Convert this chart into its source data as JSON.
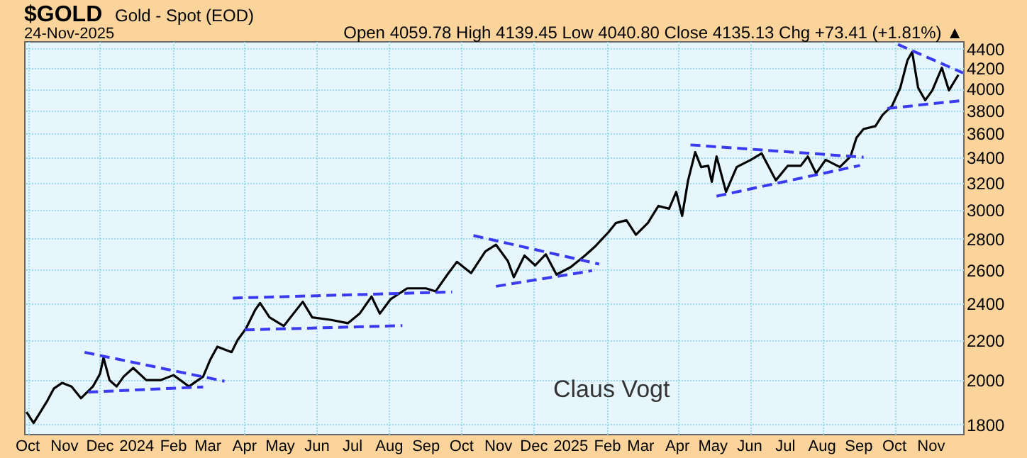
{
  "chart_data": {
    "type": "line",
    "title": "$GOLD",
    "subtitle": "Gold - Spot (EOD)",
    "annotations": [
      "24-Nov-2025",
      "Open 4059.78  High 4139.45  Low 4040.80  Close 4135.13  Chg +73.41 (+1.81%) ▲",
      "Claus Vogt"
    ],
    "log": true,
    "grid": true,
    "xlim": [
      "2023-09-28",
      "2025-11-28"
    ],
    "xticks": [
      {
        "value": "2023-10-01",
        "label": "Oct"
      },
      {
        "value": "2023-11-01",
        "label": "Nov"
      },
      {
        "value": "2023-12-01",
        "label": "Dec"
      },
      {
        "value": "2024-01-01",
        "label": "2024"
      },
      {
        "value": "2024-02-01",
        "label": "Feb"
      },
      {
        "value": "2024-03-01",
        "label": "Mar"
      },
      {
        "value": "2024-04-01",
        "label": "Apr"
      },
      {
        "value": "2024-05-01",
        "label": "May"
      },
      {
        "value": "2024-06-01",
        "label": "Jun"
      },
      {
        "value": "2024-07-01",
        "label": "Jul"
      },
      {
        "value": "2024-08-01",
        "label": "Aug"
      },
      {
        "value": "2024-09-01",
        "label": "Sep"
      },
      {
        "value": "2024-10-01",
        "label": "Oct"
      },
      {
        "value": "2024-11-01",
        "label": "Nov"
      },
      {
        "value": "2024-12-01",
        "label": "Dec"
      },
      {
        "value": "2025-01-01",
        "label": "2025"
      },
      {
        "value": "2025-02-01",
        "label": "Feb"
      },
      {
        "value": "2025-03-01",
        "label": "Mar"
      },
      {
        "value": "2025-04-01",
        "label": "Apr"
      },
      {
        "value": "2025-05-01",
        "label": "May"
      },
      {
        "value": "2025-06-01",
        "label": "Jun"
      },
      {
        "value": "2025-07-01",
        "label": "Jul"
      },
      {
        "value": "2025-08-01",
        "label": "Aug"
      },
      {
        "value": "2025-09-01",
        "label": "Sep"
      },
      {
        "value": "2025-10-01",
        "label": "Oct"
      },
      {
        "value": "2025-11-01",
        "label": "Nov"
      }
    ],
    "ylim": [
      1760,
      4480
    ],
    "yticks": [
      1800,
      2000,
      2200,
      2400,
      2600,
      2800,
      3000,
      3200,
      3400,
      3600,
      3800,
      4000,
      4200,
      4400
    ],
    "series": [
      {
        "color": "#000000",
        "line_style": "solid",
        "x": [
          "2023-09-30",
          "2023-10-06",
          "2023-10-17",
          "2023-10-23",
          "2023-10-30",
          "2023-11-07",
          "2023-11-15",
          "2023-11-25",
          "2023-12-01",
          "2023-12-04",
          "2023-12-09",
          "2023-12-15",
          "2023-12-21",
          "2023-12-29",
          "2024-01-09",
          "2024-01-21",
          "2024-02-01",
          "2024-02-14",
          "2024-02-26",
          "2024-03-03",
          "2024-03-09",
          "2024-03-21",
          "2024-03-26",
          "2024-04-02",
          "2024-04-10",
          "2024-04-14",
          "2024-04-22",
          "2024-05-04",
          "2024-05-20",
          "2024-05-28",
          "2024-06-13",
          "2024-06-27",
          "2024-07-07",
          "2024-07-17",
          "2024-07-24",
          "2024-08-02",
          "2024-08-16",
          "2024-09-01",
          "2024-09-09",
          "2024-09-19",
          "2024-09-27",
          "2024-10-09",
          "2024-10-21",
          "2024-10-30",
          "2024-11-09",
          "2024-11-14",
          "2024-11-23",
          "2024-12-02",
          "2024-12-11",
          "2024-12-20",
          "2025-01-01",
          "2025-01-13",
          "2025-01-22",
          "2025-02-02",
          "2025-02-08",
          "2025-02-17",
          "2025-02-25",
          "2025-03-07",
          "2025-03-16",
          "2025-03-25",
          "2025-03-31",
          "2025-04-05",
          "2025-04-10",
          "2025-04-16",
          "2025-04-21",
          "2025-04-27",
          "2025-04-30",
          "2025-05-04",
          "2025-05-12",
          "2025-05-21",
          "2025-06-02",
          "2025-06-11",
          "2025-06-23",
          "2025-07-03",
          "2025-07-14",
          "2025-07-20",
          "2025-07-27",
          "2025-08-04",
          "2025-08-16",
          "2025-08-25",
          "2025-08-30",
          "2025-09-05",
          "2025-09-15",
          "2025-09-21",
          "2025-09-29",
          "2025-10-06",
          "2025-10-12",
          "2025-10-16",
          "2025-10-21",
          "2025-10-27",
          "2025-11-02",
          "2025-11-10",
          "2025-11-16",
          "2025-11-24"
        ],
        "values": [
          1854,
          1806,
          1899,
          1960,
          1987,
          1970,
          1916,
          1970,
          2030,
          2110,
          2000,
          1970,
          2017,
          2059,
          2000,
          2000,
          2024,
          1970,
          2017,
          2100,
          2166,
          2138,
          2200,
          2260,
          2365,
          2403,
          2322,
          2275,
          2410,
          2322,
          2308,
          2290,
          2343,
          2440,
          2343,
          2424,
          2488,
          2488,
          2470,
          2571,
          2650,
          2580,
          2717,
          2760,
          2655,
          2555,
          2690,
          2628,
          2698,
          2571,
          2617,
          2690,
          2752,
          2845,
          2906,
          2926,
          2826,
          2906,
          3027,
          3007,
          3130,
          2956,
          3217,
          3440,
          3320,
          3330,
          3206,
          3405,
          3130,
          3320,
          3378,
          3430,
          3217,
          3330,
          3330,
          3405,
          3270,
          3378,
          3320,
          3405,
          3560,
          3635,
          3660,
          3758,
          3840,
          4010,
          4280,
          4366,
          4010,
          3892,
          3985,
          4205,
          3985,
          4135
        ]
      },
      {
        "color": "#3a3af0",
        "line_style": "dashed",
        "x": [
          "2023-11-18",
          "2024-03-15"
        ],
        "values": [
          2137,
          1995
        ]
      },
      {
        "color": "#3a3af0",
        "line_style": "dashed",
        "x": [
          "2023-11-21",
          "2024-02-26"
        ],
        "values": [
          1944,
          1968
        ]
      },
      {
        "color": "#3a3af0",
        "line_style": "dashed",
        "x": [
          "2024-03-22",
          "2024-09-23"
        ],
        "values": [
          2431,
          2467
        ]
      },
      {
        "color": "#3a3af0",
        "line_style": "dashed",
        "x": [
          "2024-04-01",
          "2024-08-12"
        ],
        "values": [
          2254,
          2277
        ]
      },
      {
        "color": "#3a3af0",
        "line_style": "dashed",
        "x": [
          "2024-10-11",
          "2025-01-25"
        ],
        "values": [
          2821,
          2636
        ]
      },
      {
        "color": "#3a3af0",
        "line_style": "dashed",
        "x": [
          "2024-10-30",
          "2025-01-19"
        ],
        "values": [
          2500,
          2595
        ]
      },
      {
        "color": "#3a3af0",
        "line_style": "dashed",
        "x": [
          "2025-04-12",
          "2025-09-05"
        ],
        "values": [
          3500,
          3399
        ]
      },
      {
        "color": "#3a3af0",
        "line_style": "dashed",
        "x": [
          "2025-05-04",
          "2025-09-02"
        ],
        "values": [
          3098,
          3333
        ]
      },
      {
        "color": "#3a3af0",
        "line_style": "dashed",
        "x": [
          "2025-10-04",
          "2025-11-28"
        ],
        "values": [
          4445,
          4153
        ]
      },
      {
        "color": "#3a3af0",
        "line_style": "dashed",
        "x": [
          "2025-09-25",
          "2025-11-28"
        ],
        "values": [
          3817,
          3891
        ]
      }
    ]
  }
}
